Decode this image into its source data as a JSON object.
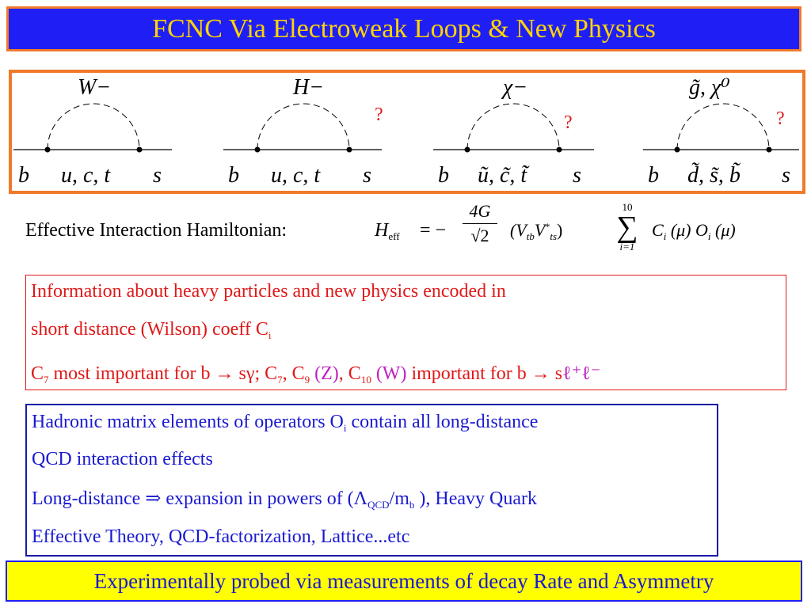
{
  "title": "FCNC Via Electroweak Loops & New Physics",
  "diagrams": [
    {
      "boson": "W−",
      "left": "b",
      "internal": "u, c, t",
      "right": "s",
      "question": ""
    },
    {
      "boson": "H−",
      "left": "b",
      "internal": "u, c, t",
      "right": "s",
      "question": "?"
    },
    {
      "boson": "χ−",
      "left": "b",
      "internal": "ũ, c̃, t̃",
      "right": "s",
      "question": "?"
    },
    {
      "boson": "g̃, χ⁰",
      "left": "b",
      "internal": "d̃, s̃, b̃",
      "right": "s",
      "question": "?"
    }
  ],
  "hamiltonian": {
    "label": "Effective Interaction Hamiltonian:",
    "H": "H",
    "H_sub": "eff",
    "eq": "= −",
    "numerator": "4G",
    "denominator": "√2",
    "ckm": "(V",
    "ckm_sub1": "tb",
    "ckm_v2": "V",
    "ckm_sup2": "*",
    "ckm_sub2": "ts",
    "ckm_close": ")",
    "sum_upper": "10",
    "sum_symbol": "∑",
    "sum_lower": "i=1",
    "term": "C",
    "term_sub": "i",
    "mu1": "(μ)",
    "op": "O",
    "op_sub": "i",
    "mu2": "(μ)"
  },
  "red_box": {
    "line1": "Information about heavy particles and new physics encoded in",
    "line2": "short distance (Wilson) coeff C",
    "line2_sub": "i",
    "line3_a": "C",
    "line3_a_sub": "7",
    "line3_b": " most important for b → sγ;  C",
    "line3_c_sub": "7",
    "line3_d": ", C",
    "line3_e_sub": "9",
    "line3_f": " (Z)",
    "line3_g": ", C",
    "line3_h_sub": "10",
    "line3_i": " (W)",
    "line3_j": " important for b → s",
    "line3_k": "ℓ⁺ℓ⁻"
  },
  "blue_box": {
    "line1_a": "Hadronic matrix elements of operators O",
    "line1_sub": "i",
    "line1_b": "  contain all long-distance",
    "line2": "QCD interaction effects",
    "line3_a": "Long-distance ⇒  expansion in powers of (Λ",
    "line3_sub1": "QCD",
    "line3_b": "/m",
    "line3_sub2": "b",
    "line3_c": " ), Heavy Quark",
    "line4": "Effective Theory, QCD-factorization, Lattice...etc"
  },
  "bottom": "Experimentally probed via measurements of decay Rate and Asymmetry",
  "colors": {
    "title_bg": "#1f1ff5",
    "title_text": "#ffd400",
    "frame": "#f07a2a",
    "red": "#e01818",
    "blue": "#1a1ad0",
    "magenta": "#c020c0",
    "bottom_bg": "#ffff00"
  }
}
